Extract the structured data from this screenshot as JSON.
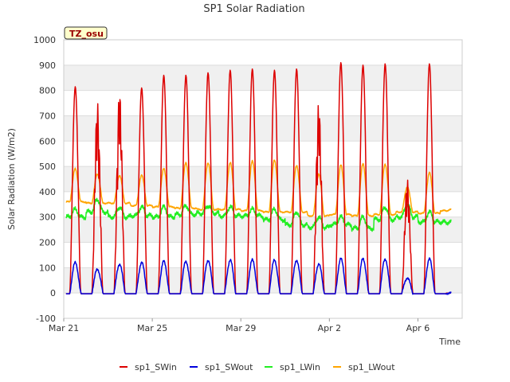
{
  "chart_data": {
    "type": "line",
    "title": "SP1 Solar Radiation",
    "xlabel": "Time",
    "ylabel": "Solar Radiation (W/m2)",
    "site_tag": "TZ_osu",
    "ylim": [
      -100,
      1000
    ],
    "yticks": [
      -100,
      0,
      100,
      200,
      300,
      400,
      500,
      600,
      700,
      800,
      900,
      1000
    ],
    "xlim": [
      0,
      18
    ],
    "xticks": [
      {
        "x": 0,
        "label": "Mar 21"
      },
      {
        "x": 4,
        "label": "Mar 25"
      },
      {
        "x": 8,
        "label": "Mar 29"
      },
      {
        "x": 12,
        "label": "Apr 2"
      },
      {
        "x": 16,
        "label": "Apr 6"
      }
    ],
    "grid": true,
    "legend_position": "bottom",
    "x_unit": "days since Mar 21",
    "daily": {
      "days": [
        "Mar 21",
        "Mar 22",
        "Mar 23",
        "Mar 24",
        "Mar 25",
        "Mar 26",
        "Mar 27",
        "Mar 28",
        "Mar 29",
        "Mar 30",
        "Mar 31",
        "Apr 1",
        "Apr 2",
        "Apr 3",
        "Apr 4",
        "Apr 5",
        "Apr 6",
        "Apr 7"
      ],
      "sp1_SWin_peak": [
        815,
        755,
        805,
        810,
        860,
        860,
        870,
        880,
        885,
        880,
        885,
        755,
        910,
        900,
        905,
        450,
        905,
        0
      ],
      "sp1_SWout_peak": [
        120,
        95,
        115,
        120,
        125,
        125,
        130,
        130,
        130,
        130,
        130,
        115,
        135,
        135,
        135,
        60,
        135,
        0
      ],
      "sp1_LWin_day": [
        330,
        370,
        340,
        340,
        340,
        345,
        345,
        340,
        330,
        330,
        320,
        300,
        300,
        300,
        340,
        350,
        320,
        280
      ],
      "sp1_LWin_night": [
        300,
        320,
        300,
        305,
        300,
        310,
        315,
        305,
        305,
        290,
        270,
        260,
        270,
        255,
        290,
        300,
        280,
        280
      ],
      "sp1_LWout_peak": [
        490,
        470,
        465,
        465,
        490,
        515,
        515,
        515,
        520,
        525,
        505,
        470,
        505,
        510,
        510,
        420,
        475,
        330
      ],
      "sp1_LWout_night": [
        360,
        355,
        355,
        345,
        340,
        335,
        330,
        330,
        325,
        320,
        320,
        305,
        310,
        305,
        310,
        320,
        315,
        325
      ]
    },
    "series": [
      {
        "name": "sp1_SWin",
        "color": "#dd0000"
      },
      {
        "name": "sp1_SWout",
        "color": "#0000dd"
      },
      {
        "name": "sp1_LWin",
        "color": "#22ee22"
      },
      {
        "name": "sp1_LWout",
        "color": "#ffa500"
      }
    ],
    "background": {
      "band_color": "#f0f0f0",
      "grid_color": "#dddddd"
    }
  }
}
